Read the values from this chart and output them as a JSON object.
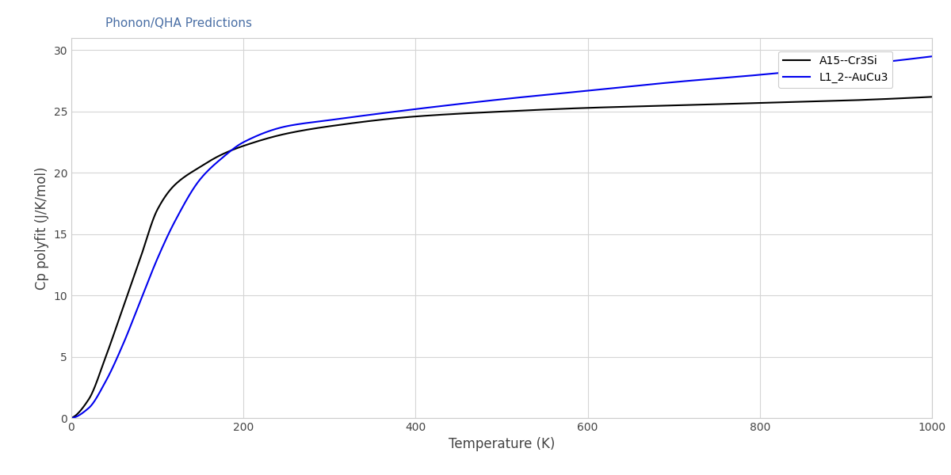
{
  "title": "Phonon/QHA Predictions",
  "xlabel": "Temperature (K)",
  "ylabel": "Cp polyfit (J/K/mol)",
  "xlim": [
    0,
    1000
  ],
  "ylim": [
    0,
    31
  ],
  "yticks": [
    0,
    5,
    10,
    15,
    20,
    25,
    30
  ],
  "xticks": [
    0,
    200,
    400,
    600,
    800,
    1000
  ],
  "background_color": "#ffffff",
  "grid_color": "#d5d5d5",
  "title_color": "#4a6fa5",
  "axes_color": "#cccccc",
  "series": [
    {
      "label": "A15--Cr3Si",
      "color": "#000000",
      "linewidth": 1.5,
      "alpha": 5.5,
      "power": 0.55,
      "cp_max": 26.2
    },
    {
      "label": "L1_2--AuCu3",
      "color": "#0000ee",
      "linewidth": 1.5,
      "alpha": 4.2,
      "power": 0.52,
      "cp_max": 29.6
    }
  ]
}
